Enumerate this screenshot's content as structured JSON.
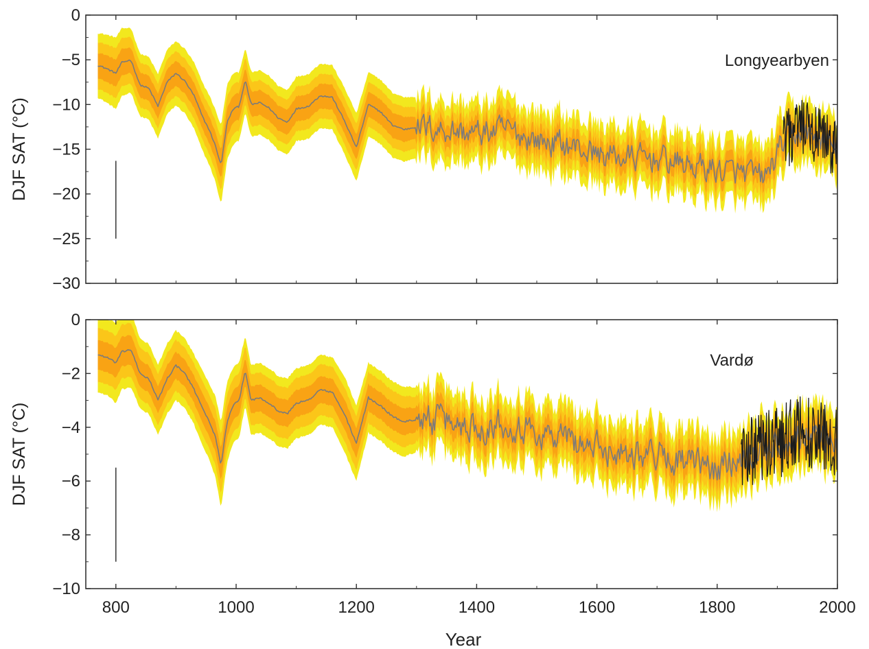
{
  "figure": {
    "xlabel": "Year",
    "colors": {
      "band_outer": "#f2e81e",
      "band_mid": "#fbc619",
      "band_inner": "#f9a314",
      "median_line": "#7b7b7b",
      "observed_line": "#1c1c1c",
      "axis": "#333333"
    }
  },
  "chart_data": [
    {
      "type": "line",
      "title": "",
      "station": "Longyearbyen",
      "ylabel": "DJF SAT (°C)",
      "xlabel": "",
      "xlim": [
        750,
        2000
      ],
      "ylim": [
        -30,
        0
      ],
      "xticks": [
        800,
        1000,
        1200,
        1400,
        1600,
        1800,
        2000
      ],
      "yticks": [
        0,
        -5,
        -10,
        -15,
        -20,
        -25,
        -30
      ],
      "ytick_labels": [
        "0",
        "−5",
        "−10",
        "−15",
        "−20",
        "−25",
        "−30"
      ],
      "grid": false,
      "error_bar": {
        "x": 800,
        "y": [
          -25,
          -16.3
        ]
      },
      "observed_start": 1910,
      "median": {
        "x": [
          770,
          785,
          800,
          810,
          825,
          840,
          855,
          870,
          885,
          900,
          915,
          930,
          945,
          955,
          965,
          975,
          985,
          995,
          1005,
          1015,
          1025,
          1040,
          1055,
          1070,
          1085,
          1100,
          1120,
          1140,
          1160,
          1180,
          1200,
          1220,
          1240,
          1260,
          1280,
          1300,
          1350,
          1400,
          1450,
          1500,
          1550,
          1600,
          1650,
          1700,
          1750,
          1800,
          1850,
          1880,
          1910,
          1940,
          1970,
          2000
        ],
        "y": [
          -5.6,
          -6.0,
          -6.5,
          -5.3,
          -5.0,
          -7.8,
          -8.2,
          -10.2,
          -7.5,
          -6.5,
          -7.4,
          -9.0,
          -11.5,
          -12.8,
          -14.5,
          -16.8,
          -12.0,
          -10.5,
          -10.2,
          -7.3,
          -10.0,
          -9.8,
          -10.4,
          -11.5,
          -12.0,
          -10.5,
          -10.2,
          -9.0,
          -9.2,
          -11.8,
          -14.8,
          -10.0,
          -10.8,
          -12.3,
          -12.8,
          -12.5,
          -12.8,
          -13.3,
          -12.8,
          -14.0,
          -14.5,
          -15.5,
          -16.0,
          -16.0,
          -16.8,
          -17.3,
          -17.8,
          -18.2,
          -14.2,
          -13.0,
          -14.0,
          -15.0
        ]
      },
      "band_outer_halfwidth": [
        3.6,
        3.8,
        4.0,
        3.8,
        3.6,
        3.5,
        3.5,
        3.6,
        3.6,
        3.6,
        3.6,
        3.7,
        3.8,
        3.9,
        4.0,
        4.4,
        4.2,
        4.0,
        3.8,
        3.6,
        3.6,
        3.6,
        3.6,
        3.6,
        3.6,
        3.6,
        3.6,
        3.6,
        3.6,
        3.7,
        3.8,
        3.6,
        3.6,
        3.6,
        3.6,
        3.4,
        3.4,
        3.4,
        3.4,
        3.4,
        3.4,
        3.4,
        3.4,
        3.4,
        3.4,
        3.4,
        3.4,
        3.4,
        3.4,
        3.4,
        3.4,
        3.4
      ],
      "band_mid_halfwidth": [
        2.6,
        2.7,
        2.8,
        2.7,
        2.6,
        2.5,
        2.5,
        2.5,
        2.5,
        2.5,
        2.5,
        2.6,
        2.6,
        2.7,
        2.8,
        3.0,
        2.9,
        2.8,
        2.7,
        2.6,
        2.5,
        2.5,
        2.5,
        2.5,
        2.5,
        2.5,
        2.5,
        2.5,
        2.5,
        2.6,
        2.6,
        2.5,
        2.5,
        2.5,
        2.5,
        2.3,
        2.3,
        2.3,
        2.3,
        2.3,
        2.3,
        2.3,
        2.3,
        2.3,
        2.3,
        2.3,
        2.3,
        2.3,
        2.3,
        2.3,
        2.3,
        2.3
      ],
      "band_inner_halfwidth": [
        1.4,
        1.5,
        1.5,
        1.5,
        1.4,
        1.4,
        1.4,
        1.4,
        1.4,
        1.4,
        1.4,
        1.4,
        1.4,
        1.5,
        1.5,
        1.6,
        1.6,
        1.5,
        1.5,
        1.4,
        1.4,
        1.4,
        1.4,
        1.4,
        1.4,
        1.4,
        1.4,
        1.4,
        1.4,
        1.4,
        1.4,
        1.4,
        1.4,
        1.4,
        1.4,
        1.2,
        1.2,
        1.2,
        1.2,
        1.2,
        1.2,
        1.2,
        1.2,
        1.2,
        1.2,
        1.2,
        1.2,
        1.2,
        1.2,
        1.2,
        1.2,
        1.2
      ],
      "noise_amplitude": {
        "start": 1300,
        "value": 2.4
      }
    },
    {
      "type": "line",
      "title": "",
      "station": "Vardø",
      "ylabel": "DJF SAT (°C)",
      "xlabel": "Year",
      "xlim": [
        750,
        2000
      ],
      "ylim": [
        -10,
        0
      ],
      "xticks": [
        800,
        1000,
        1200,
        1400,
        1600,
        1800,
        2000
      ],
      "yticks": [
        0,
        -2,
        -4,
        -6,
        -8,
        -10
      ],
      "ytick_labels": [
        "0",
        "−2",
        "−4",
        "−6",
        "−8",
        "−10"
      ],
      "grid": false,
      "error_bar": {
        "x": 800,
        "y": [
          -9.0,
          -5.5
        ]
      },
      "observed_start": 1840,
      "median": {
        "x": [
          770,
          785,
          800,
          810,
          825,
          840,
          855,
          870,
          885,
          900,
          915,
          930,
          945,
          955,
          965,
          975,
          985,
          995,
          1005,
          1015,
          1025,
          1040,
          1055,
          1070,
          1085,
          1100,
          1120,
          1140,
          1160,
          1180,
          1200,
          1220,
          1240,
          1260,
          1280,
          1300,
          1350,
          1400,
          1450,
          1500,
          1550,
          1600,
          1650,
          1700,
          1750,
          1800,
          1840,
          1870,
          1900,
          1930,
          1960,
          2000
        ],
        "y": [
          -1.3,
          -1.4,
          -1.6,
          -1.2,
          -1.1,
          -2.0,
          -2.2,
          -3.0,
          -2.2,
          -1.7,
          -2.0,
          -2.6,
          -3.3,
          -3.8,
          -4.3,
          -5.4,
          -3.8,
          -3.2,
          -3.0,
          -1.9,
          -3.0,
          -2.9,
          -3.1,
          -3.4,
          -3.5,
          -3.1,
          -3.0,
          -2.6,
          -2.7,
          -3.5,
          -4.6,
          -2.9,
          -3.2,
          -3.6,
          -3.8,
          -3.7,
          -3.8,
          -4.0,
          -3.8,
          -4.2,
          -4.4,
          -4.8,
          -4.9,
          -5.0,
          -5.3,
          -5.6,
          -5.0,
          -4.8,
          -4.6,
          -4.2,
          -4.2,
          -4.5
        ]
      },
      "band_outer_halfwidth": [
        1.4,
        1.4,
        1.5,
        1.4,
        1.4,
        1.3,
        1.3,
        1.3,
        1.3,
        1.3,
        1.3,
        1.3,
        1.4,
        1.4,
        1.5,
        1.6,
        1.5,
        1.4,
        1.4,
        1.3,
        1.3,
        1.3,
        1.3,
        1.3,
        1.3,
        1.3,
        1.3,
        1.3,
        1.3,
        1.4,
        1.4,
        1.3,
        1.3,
        1.3,
        1.3,
        1.2,
        1.2,
        1.2,
        1.2,
        1.2,
        1.2,
        1.2,
        1.2,
        1.2,
        1.2,
        1.2,
        1.2,
        1.2,
        1.2,
        1.2,
        1.2,
        1.2
      ],
      "band_mid_halfwidth": [
        1.0,
        1.0,
        1.0,
        1.0,
        1.0,
        0.95,
        0.95,
        0.95,
        0.95,
        0.95,
        0.95,
        0.95,
        1.0,
        1.0,
        1.05,
        1.1,
        1.05,
        1.0,
        1.0,
        0.95,
        0.95,
        0.95,
        0.95,
        0.95,
        0.95,
        0.95,
        0.95,
        0.95,
        0.95,
        1.0,
        1.0,
        0.95,
        0.95,
        0.95,
        0.95,
        0.85,
        0.85,
        0.85,
        0.85,
        0.85,
        0.85,
        0.85,
        0.85,
        0.85,
        0.85,
        0.85,
        0.85,
        0.85,
        0.85,
        0.85,
        0.85,
        0.85
      ],
      "band_inner_halfwidth": [
        0.55,
        0.55,
        0.55,
        0.55,
        0.55,
        0.5,
        0.5,
        0.5,
        0.5,
        0.5,
        0.5,
        0.5,
        0.55,
        0.55,
        0.55,
        0.6,
        0.55,
        0.55,
        0.55,
        0.5,
        0.5,
        0.5,
        0.5,
        0.5,
        0.5,
        0.5,
        0.5,
        0.5,
        0.5,
        0.55,
        0.55,
        0.5,
        0.5,
        0.5,
        0.5,
        0.45,
        0.45,
        0.45,
        0.45,
        0.45,
        0.45,
        0.45,
        0.45,
        0.45,
        0.45,
        0.45,
        0.45,
        0.45,
        0.45,
        0.45,
        0.45,
        0.45
      ],
      "noise_amplitude": {
        "start": 1300,
        "value": 0.9
      }
    }
  ]
}
